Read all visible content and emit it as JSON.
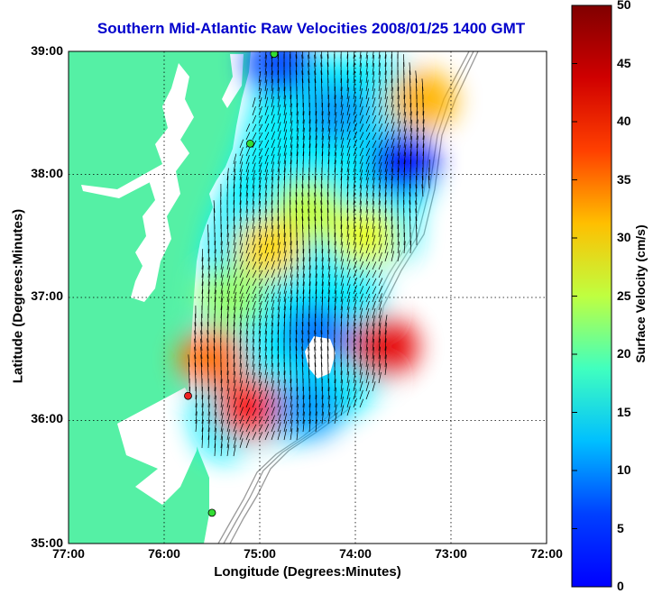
{
  "title": "Southern Mid-Atlantic Raw Velocities 2008/01/25 1400 GMT",
  "x_axis": {
    "label": "Longitude (Degrees:Minutes)",
    "ticks": [
      "77:00",
      "76:00",
      "75:00",
      "74:00",
      "73:00",
      "72:00"
    ]
  },
  "y_axis": {
    "label": "Latitude (Degrees:Minutes)",
    "ticks": [
      "39:00",
      "38:00",
      "37:00",
      "36:00",
      "35:00"
    ]
  },
  "colorbar": {
    "label": "Surface Velocity (cm/s)",
    "ticks": [
      "50",
      "45",
      "40",
      "35",
      "30",
      "25",
      "20",
      "15",
      "10",
      "5",
      "0"
    ],
    "min": 0,
    "max": 50,
    "colormap": "jet"
  },
  "colors": {
    "land": "#55f0a5",
    "water": "#ffffff",
    "title": "#0000cc",
    "arrows": "#000000",
    "bathymetry": "#999999",
    "station_active": "#33dd33",
    "station_inactive": "#ee2222"
  },
  "chart_data": {
    "type": "map",
    "extent": {
      "lon": [
        -77,
        -72
      ],
      "lat": [
        35,
        39
      ]
    },
    "grid": true,
    "stations": [
      {
        "lon": -74.85,
        "lat": 38.98,
        "status": "active"
      },
      {
        "lon": -75.1,
        "lat": 38.25,
        "status": "active"
      },
      {
        "lon": -75.75,
        "lat": 36.2,
        "status": "inactive"
      },
      {
        "lon": -75.5,
        "lat": 35.25,
        "status": "active"
      }
    ],
    "speed_regions": [
      {
        "lon": -74.2,
        "lat": 38.5,
        "speed": 14
      },
      {
        "lon": -73.5,
        "lat": 38.1,
        "speed": 6
      },
      {
        "lon": -73.3,
        "lat": 38.6,
        "speed": 35
      },
      {
        "lon": -74.5,
        "lat": 37.7,
        "speed": 28
      },
      {
        "lon": -74.9,
        "lat": 37.4,
        "speed": 33
      },
      {
        "lon": -73.9,
        "lat": 37.5,
        "speed": 30
      },
      {
        "lon": -75.3,
        "lat": 37.0,
        "speed": 26
      },
      {
        "lon": -74.4,
        "lat": 36.7,
        "speed": 12
      },
      {
        "lon": -73.7,
        "lat": 36.6,
        "speed": 45
      },
      {
        "lon": -75.1,
        "lat": 36.1,
        "speed": 44
      },
      {
        "lon": -75.5,
        "lat": 36.5,
        "speed": 38
      },
      {
        "lon": -74.5,
        "lat": 36.1,
        "speed": 14
      },
      {
        "lon": -74.8,
        "lat": 38.9,
        "speed": 10
      }
    ]
  }
}
